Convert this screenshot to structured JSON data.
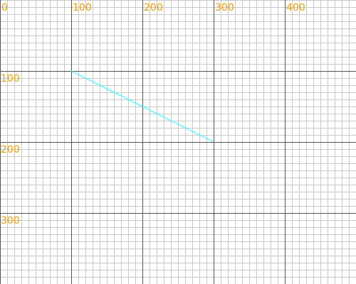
{
  "chart_data": {
    "type": "line",
    "x": [
      100,
      300
    ],
    "series": [
      {
        "color": "#33ffff",
        "values": [
          100,
          200
        ]
      }
    ],
    "xlim": [
      0,
      500
    ],
    "ylim": [
      400,
      0
    ],
    "xticks": [
      0,
      100,
      200,
      300,
      400
    ],
    "yticks": [
      100,
      200,
      300
    ],
    "grid": true,
    "grid_color": "#555555",
    "tick_label_color": "#f0a000"
  }
}
